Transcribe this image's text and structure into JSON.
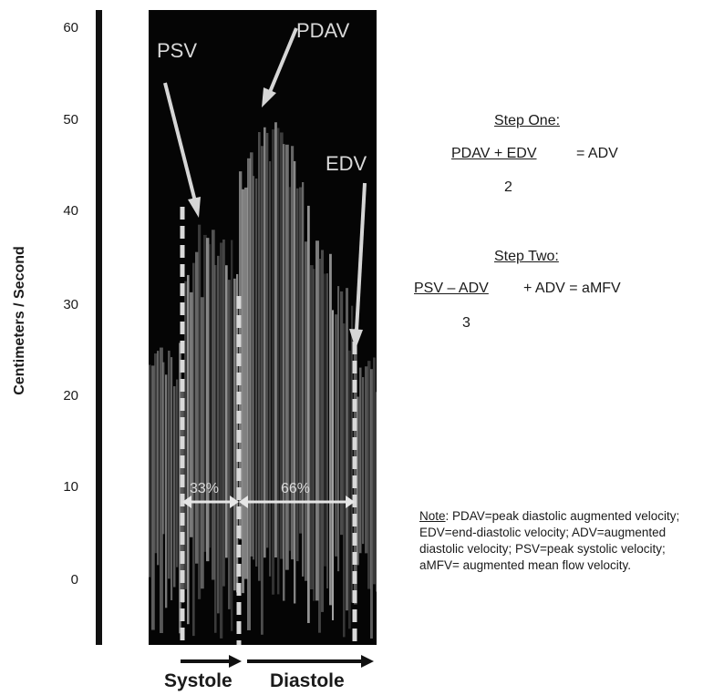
{
  "axis": {
    "ylabel": "Centimeters / Second",
    "ticks": [
      "60",
      "50",
      "40",
      "30",
      "20",
      "10",
      "0"
    ]
  },
  "labels": {
    "psv": "PSV",
    "pdav": "PDAV",
    "edv": "EDV",
    "systole_pct": "33%",
    "diastole_pct": "66%"
  },
  "phases": {
    "systole": "Systole",
    "diastole": "Diastole"
  },
  "step_one": {
    "title": "Step One:",
    "numerator": "PDAV + EDV",
    "equals": "=  ADV",
    "denominator": "2"
  },
  "step_two": {
    "title": "Step Two:",
    "numerator": "PSV – ADV",
    "rest": "+ ADV  =  aMFV",
    "denominator": "3"
  },
  "note": {
    "label": "Note",
    "text": ": PDAV=peak diastolic augmented velocity; EDV=end-diastolic velocity; ADV=augmented diastolic velocity; PSV=peak systolic velocity; aMFV= augmented mean flow velocity."
  },
  "colors": {
    "spectrogram_bg": "#050505",
    "signal": "#cfcfcf",
    "arrow": "#d6d6d6",
    "dashed": "#d9d9d9"
  }
}
